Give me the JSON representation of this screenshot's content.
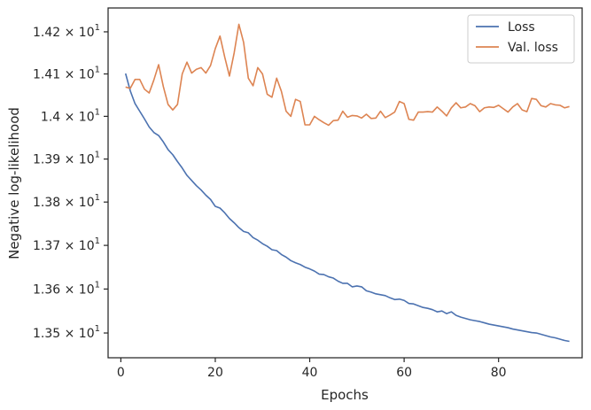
{
  "chart_data": {
    "type": "line",
    "xlabel": "Epochs",
    "ylabel": "Negative log-likelihood",
    "xlim": [
      -2.7,
      97.7
    ],
    "ylim": [
      13.444,
      14.257
    ],
    "y_scale": "log",
    "grid": false,
    "legend_position": "top-right",
    "x_ticks": [
      0,
      20,
      40,
      60,
      80
    ],
    "x_tick_labels": [
      "0",
      "20",
      "40",
      "60",
      "80"
    ],
    "y_ticks": [
      {
        "value": 13.5,
        "mantissa": "1.35",
        "base": "10",
        "exp": "1"
      },
      {
        "value": 13.6,
        "mantissa": "1.36",
        "base": "10",
        "exp": "1"
      },
      {
        "value": 13.7,
        "mantissa": "1.37",
        "base": "10",
        "exp": "1"
      },
      {
        "value": 13.8,
        "mantissa": "1.38",
        "base": "10",
        "exp": "1"
      },
      {
        "value": 13.9,
        "mantissa": "1.39",
        "base": "10",
        "exp": "1"
      },
      {
        "value": 14.0,
        "mantissa": "1.4",
        "base": "10",
        "exp": "1"
      },
      {
        "value": 14.1,
        "mantissa": "1.41",
        "base": "10",
        "exp": "1"
      },
      {
        "value": 14.2,
        "mantissa": "1.42",
        "base": "10",
        "exp": "1"
      }
    ],
    "series": [
      {
        "name": "Loss",
        "color": "#4c72b0",
        "x": [
          1,
          2,
          3,
          4,
          5,
          6,
          7,
          8,
          9,
          10,
          11,
          12,
          13,
          14,
          15,
          16,
          17,
          18,
          19,
          20,
          21,
          22,
          23,
          24,
          25,
          26,
          27,
          28,
          29,
          30,
          31,
          32,
          33,
          34,
          35,
          36,
          37,
          38,
          39,
          40,
          41,
          42,
          43,
          44,
          45,
          46,
          47,
          48,
          49,
          50,
          51,
          52,
          53,
          54,
          55,
          56,
          57,
          58,
          59,
          60,
          61,
          62,
          63,
          64,
          65,
          66,
          67,
          68,
          69,
          70,
          71,
          72,
          73,
          74,
          75,
          76,
          77,
          78,
          79,
          80,
          81,
          82,
          83,
          84,
          85,
          86,
          87,
          88,
          89,
          90,
          91,
          92,
          93,
          94,
          95
        ],
        "y": [
          14.101,
          14.06,
          14.03,
          14.012,
          13.994,
          13.975,
          13.962,
          13.955,
          13.94,
          13.922,
          13.91,
          13.894,
          13.879,
          13.862,
          13.85,
          13.838,
          13.828,
          13.816,
          13.806,
          13.79,
          13.786,
          13.775,
          13.762,
          13.752,
          13.741,
          13.732,
          13.729,
          13.718,
          13.712,
          13.704,
          13.698,
          13.69,
          13.688,
          13.679,
          13.673,
          13.665,
          13.66,
          13.656,
          13.65,
          13.646,
          13.641,
          13.634,
          13.633,
          13.628,
          13.625,
          13.618,
          13.613,
          13.613,
          13.605,
          13.607,
          13.605,
          13.596,
          13.593,
          13.589,
          13.587,
          13.585,
          13.58,
          13.576,
          13.577,
          13.574,
          13.567,
          13.566,
          13.562,
          13.558,
          13.556,
          13.553,
          13.548,
          13.55,
          13.544,
          13.548,
          13.54,
          13.536,
          13.533,
          13.53,
          13.528,
          13.526,
          13.523,
          13.52,
          13.518,
          13.516,
          13.514,
          13.512,
          13.509,
          13.507,
          13.505,
          13.503,
          13.501,
          13.5,
          13.497,
          13.494,
          13.491,
          13.489,
          13.486,
          13.483,
          13.481
        ]
      },
      {
        "name": "Val. loss",
        "color": "#dd8452",
        "x": [
          1,
          2,
          3,
          4,
          5,
          6,
          7,
          8,
          9,
          10,
          11,
          12,
          13,
          14,
          15,
          16,
          17,
          18,
          19,
          20,
          21,
          22,
          23,
          24,
          25,
          26,
          27,
          28,
          29,
          30,
          31,
          32,
          33,
          34,
          35,
          36,
          37,
          38,
          39,
          40,
          41,
          42,
          43,
          44,
          45,
          46,
          47,
          48,
          49,
          50,
          51,
          52,
          53,
          54,
          55,
          56,
          57,
          58,
          59,
          60,
          61,
          62,
          63,
          64,
          65,
          66,
          67,
          68,
          69,
          70,
          71,
          72,
          73,
          74,
          75,
          76,
          77,
          78,
          79,
          80,
          81,
          82,
          83,
          84,
          85,
          86,
          87,
          88,
          89,
          90,
          91,
          92,
          93,
          94,
          95
        ],
        "y": [
          14.069,
          14.066,
          14.087,
          14.087,
          14.064,
          14.055,
          14.086,
          14.122,
          14.07,
          14.028,
          14.015,
          14.028,
          14.1,
          14.128,
          14.102,
          14.111,
          14.115,
          14.102,
          14.12,
          14.16,
          14.19,
          14.14,
          14.095,
          14.15,
          14.218,
          14.175,
          14.09,
          14.072,
          14.115,
          14.1,
          14.052,
          14.045,
          14.09,
          14.059,
          14.012,
          14.0,
          14.04,
          14.035,
          13.98,
          13.98,
          14.0,
          13.992,
          13.985,
          13.979,
          13.99,
          13.991,
          14.012,
          13.998,
          14.002,
          14.001,
          13.996,
          14.005,
          13.995,
          13.996,
          14.012,
          13.997,
          14.003,
          14.01,
          14.035,
          14.03,
          13.993,
          13.991,
          14.01,
          14.01,
          14.011,
          14.01,
          14.022,
          14.012,
          14.001,
          14.02,
          14.032,
          14.02,
          14.022,
          14.03,
          14.025,
          14.011,
          14.02,
          14.022,
          14.021,
          14.026,
          14.018,
          14.01,
          14.022,
          14.03,
          14.015,
          14.011,
          14.042,
          14.04,
          14.025,
          14.022,
          14.03,
          14.027,
          14.026,
          14.02,
          14.023
        ]
      }
    ]
  }
}
